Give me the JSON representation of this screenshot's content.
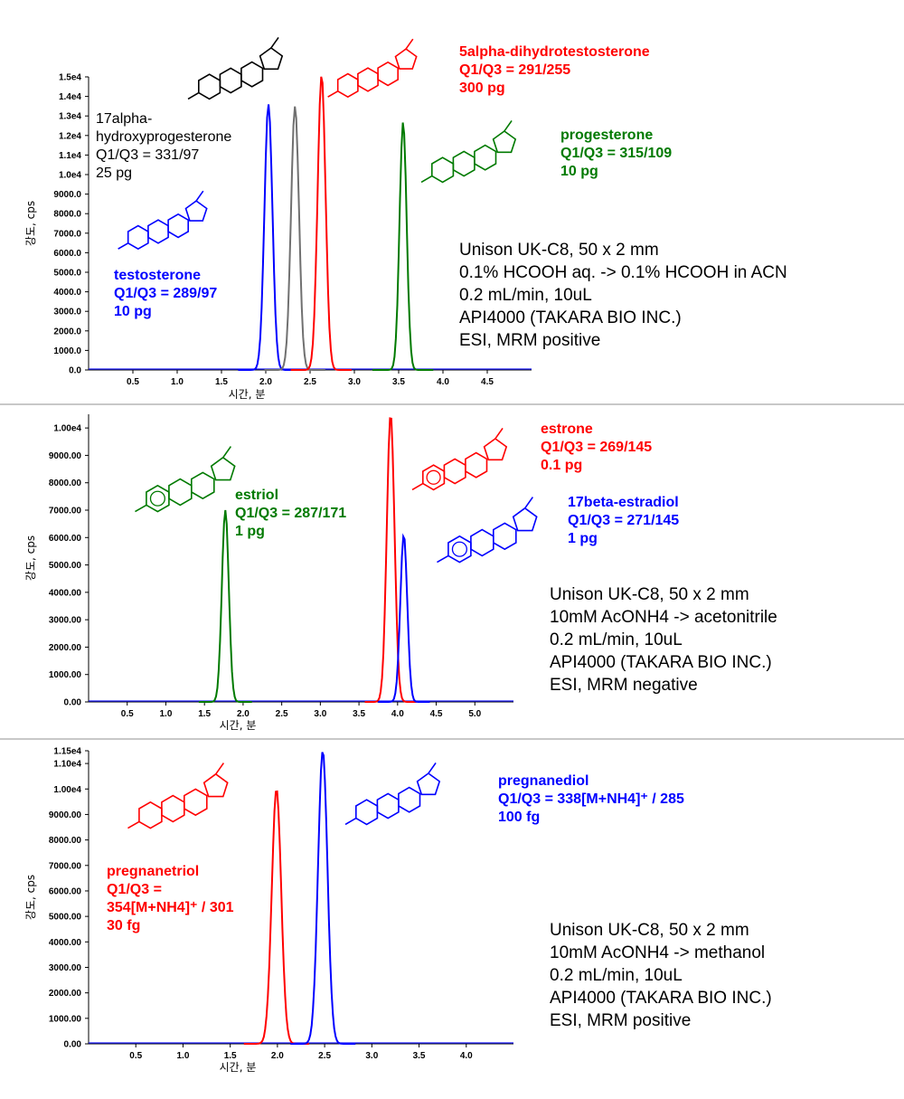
{
  "chart_data": [
    {
      "type": "line",
      "xlabel": "시간, 분",
      "ylabel": "강도, cps",
      "xlim": [
        0,
        5.0
      ],
      "ylim": [
        0,
        15000
      ],
      "x_ticks": [
        "0.5",
        "1.0",
        "1.5",
        "2.0",
        "2.5",
        "3.0",
        "3.5",
        "4.0",
        "4.5"
      ],
      "y_ticks": [
        {
          "value": 0,
          "label": "0.0"
        },
        {
          "value": 1000,
          "label": "1000.0"
        },
        {
          "value": 2000,
          "label": "2000.0"
        },
        {
          "value": 3000,
          "label": "3000.0"
        },
        {
          "value": 4000,
          "label": "4000.0"
        },
        {
          "value": 5000,
          "label": "5000.0"
        },
        {
          "value": 6000,
          "label": "6000.0"
        },
        {
          "value": 7000,
          "label": "7000.0"
        },
        {
          "value": 8000,
          "label": "8000.0"
        },
        {
          "value": 9000,
          "label": "9000.0"
        },
        {
          "value": 10000,
          "label": "1.0e4"
        },
        {
          "value": 11000,
          "label": "1.1e4"
        },
        {
          "value": 12000,
          "label": "1.2e4"
        },
        {
          "value": 13000,
          "label": "1.3e4"
        },
        {
          "value": 14000,
          "label": "1.4e4"
        },
        {
          "value": 15000,
          "label": "1.5e4"
        }
      ],
      "series": [
        {
          "name": "testosterone",
          "color": "#0000ff",
          "peak_x": 2.03,
          "peak_y": 13600,
          "width": 0.045
        },
        {
          "name": "17alpha-hydroxyprogesterone",
          "color": "#707070",
          "peak_x": 2.33,
          "peak_y": 13500,
          "width": 0.045
        },
        {
          "name": "5alpha-dihydrotestosterone",
          "color": "#ff0000",
          "peak_x": 2.63,
          "peak_y": 15100,
          "width": 0.045
        },
        {
          "name": "progesterone",
          "color": "#007a00",
          "peak_x": 3.55,
          "peak_y": 12700,
          "width": 0.04
        }
      ],
      "compound_labels": [
        {
          "color": "#000000",
          "lines": [
            "17alpha-",
            "hydroxyprogesterone",
            "Q1/Q3 = 331/97",
            "25 pg"
          ]
        },
        {
          "color": "#ff0000",
          "lines": [
            "5alpha-dihydrotestosterone",
            "Q1/Q3 = 291/255",
            "300 pg"
          ]
        },
        {
          "color": "#007a00",
          "lines": [
            "progesterone",
            "Q1/Q3 = 315/109",
            "10 pg"
          ]
        },
        {
          "color": "#0000ff",
          "lines": [
            "testosterone",
            "Q1/Q3 = 289/97",
            "10 pg"
          ]
        }
      ],
      "conditions": [
        "Unison UK-C8, 50 x 2 mm",
        "0.1% HCOOH aq. -> 0.1% HCOOH in ACN",
        "0.2 mL/min, 10uL",
        "API4000 (TAKARA BIO INC.)",
        "ESI, MRM positive"
      ]
    },
    {
      "type": "line",
      "xlabel": "시간, 분",
      "ylabel": "강도, cps",
      "xlim": [
        0,
        5.5
      ],
      "ylim": [
        0,
        10500
      ],
      "x_ticks": [
        "0.5",
        "1.0",
        "1.5",
        "2.0",
        "2.5",
        "3.0",
        "3.5",
        "4.0",
        "4.5",
        "5.0"
      ],
      "y_ticks": [
        {
          "value": 0,
          "label": "0.00"
        },
        {
          "value": 1000,
          "label": "1000.00"
        },
        {
          "value": 2000,
          "label": "2000.00"
        },
        {
          "value": 3000,
          "label": "3000.00"
        },
        {
          "value": 4000,
          "label": "4000.00"
        },
        {
          "value": 5000,
          "label": "5000.00"
        },
        {
          "value": 6000,
          "label": "6000.00"
        },
        {
          "value": 7000,
          "label": "7000.00"
        },
        {
          "value": 8000,
          "label": "8000.00"
        },
        {
          "value": 9000,
          "label": "9000.00"
        },
        {
          "value": 10000,
          "label": "1.00e4"
        }
      ],
      "series": [
        {
          "name": "estriol",
          "color": "#007a00",
          "peak_x": 1.77,
          "peak_y": 7000,
          "width": 0.045
        },
        {
          "name": "estrone",
          "color": "#ff0000",
          "peak_x": 3.91,
          "peak_y": 10500,
          "width": 0.05
        },
        {
          "name": "17beta-estradiol",
          "color": "#0000ff",
          "peak_x": 4.08,
          "peak_y": 6100,
          "width": 0.045
        }
      ],
      "compound_labels": [
        {
          "color": "#ff0000",
          "lines": [
            "estrone",
            "Q1/Q3 = 269/145",
            "0.1 pg"
          ]
        },
        {
          "color": "#007a00",
          "lines": [
            "estriol",
            "Q1/Q3 = 287/171",
            "1 pg"
          ]
        },
        {
          "color": "#0000ff",
          "lines": [
            "17beta-estradiol",
            "Q1/Q3 = 271/145",
            "1 pg"
          ]
        }
      ],
      "conditions": [
        "Unison UK-C8, 50 x 2 mm",
        "10mM AcONH4 -> acetonitrile",
        "0.2 mL/min, 10uL",
        "API4000 (TAKARA BIO INC.)",
        "ESI, MRM negative"
      ]
    },
    {
      "type": "line",
      "xlabel": "시간, 분",
      "ylabel": "강도, cps",
      "xlim": [
        0,
        4.5
      ],
      "ylim": [
        0,
        11500
      ],
      "x_ticks": [
        "0.5",
        "1.0",
        "1.5",
        "2.0",
        "2.5",
        "3.0",
        "3.5",
        "4.0"
      ],
      "y_ticks": [
        {
          "value": 0,
          "label": "0.00"
        },
        {
          "value": 1000,
          "label": "1000.00"
        },
        {
          "value": 2000,
          "label": "2000.00"
        },
        {
          "value": 3000,
          "label": "3000.00"
        },
        {
          "value": 4000,
          "label": "4000.00"
        },
        {
          "value": 5000,
          "label": "5000.00"
        },
        {
          "value": 6000,
          "label": "6000.00"
        },
        {
          "value": 7000,
          "label": "7000.00"
        },
        {
          "value": 8000,
          "label": "8000.00"
        },
        {
          "value": 9000,
          "label": "9000.00"
        },
        {
          "value": 10000,
          "label": "1.00e4"
        },
        {
          "value": 11000,
          "label": "1.10e4"
        },
        {
          "value": 11500,
          "label": "1.15e4"
        }
      ],
      "series": [
        {
          "name": "pregnanetriol",
          "color": "#ff0000",
          "peak_x": 1.99,
          "peak_y": 10000,
          "width": 0.05
        },
        {
          "name": "pregnanediol",
          "color": "#0000ff",
          "peak_x": 2.48,
          "peak_y": 11500,
          "width": 0.05
        }
      ],
      "compound_labels": [
        {
          "color": "#0000ff",
          "lines": [
            "pregnanediol",
            "Q1/Q3 = 338[M+NH4]⁺ / 285",
            "100 fg"
          ]
        },
        {
          "color": "#ff0000",
          "lines": [
            "pregnanetriol",
            "Q1/Q3 =",
            "354[M+NH4]⁺ / 301",
            "30 fg"
          ]
        }
      ],
      "conditions": [
        "Unison UK-C8, 50 x 2 mm",
        "10mM AcONH4 -> methanol",
        "0.2 mL/min, 10uL",
        "API4000 (TAKARA BIO INC.)",
        "ESI, MRM positive"
      ]
    }
  ]
}
